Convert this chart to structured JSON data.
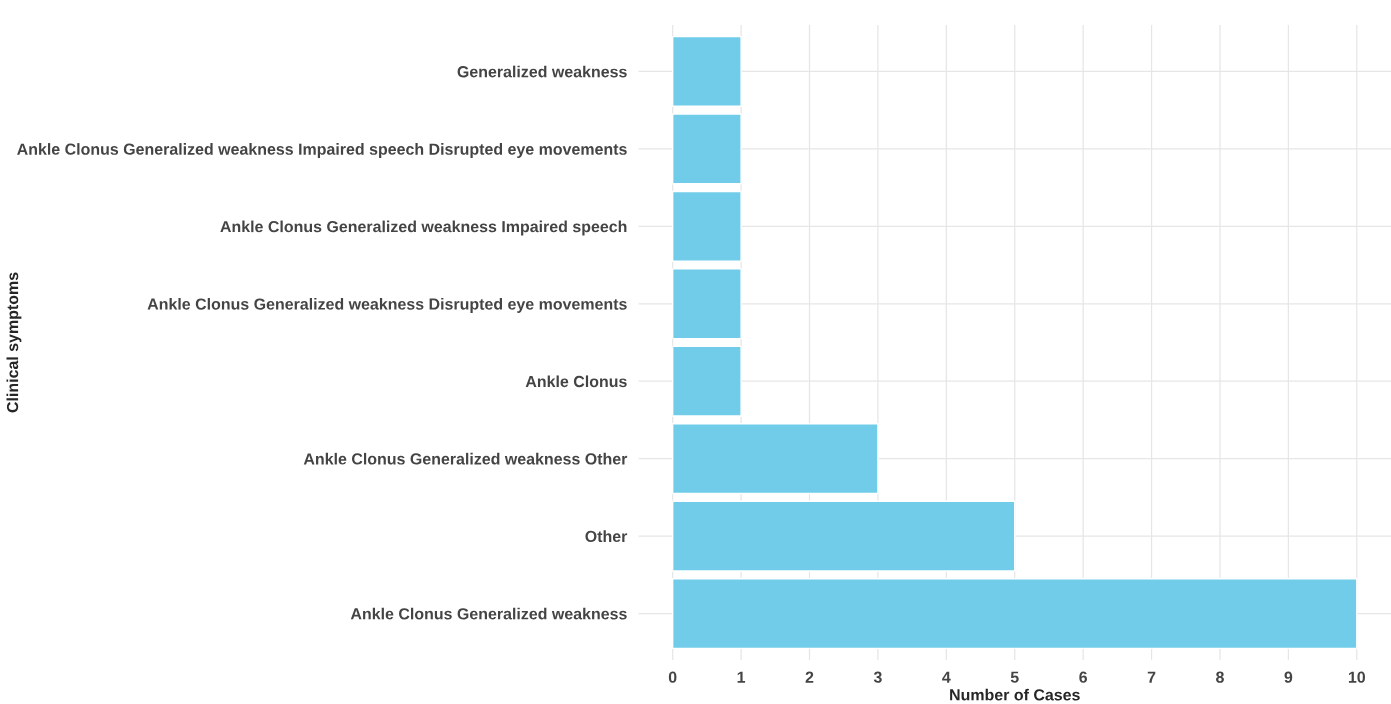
{
  "chart_data": {
    "type": "bar",
    "orientation": "horizontal",
    "xlabel": "Number of Cases",
    "ylabel": "Clinical symptoms",
    "categories": [
      "Generalized weakness",
      "Ankle Clonus Generalized weakness Impaired speech Disrupted eye movements",
      "Ankle Clonus Generalized weakness Impaired speech",
      "Ankle Clonus Generalized weakness Disrupted eye movements",
      "Ankle Clonus",
      "Ankle Clonus Generalized weakness Other",
      "Other",
      "Ankle Clonus Generalized weakness"
    ],
    "values": [
      1,
      1,
      1,
      1,
      1,
      3,
      5,
      10
    ],
    "color": "#70cce8",
    "xlim": [
      -0.5,
      10.5
    ],
    "xticks": [
      0,
      1,
      2,
      3,
      4,
      5,
      6,
      7,
      8,
      9,
      10
    ],
    "grid": true
  }
}
